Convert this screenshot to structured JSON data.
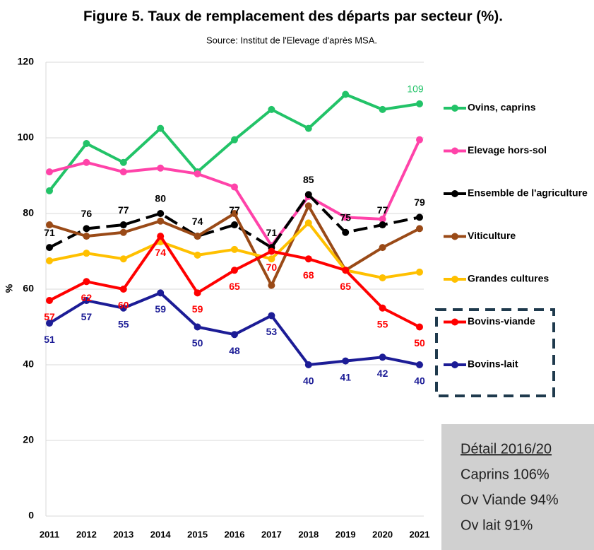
{
  "chart_data": {
    "type": "line",
    "title": "Figure 5. Taux de remplacement des départs par secteur (%).",
    "subtitle": "Source: Institut de l'Elevage d'après MSA.",
    "y_label": "%",
    "x": [
      2011,
      2012,
      2013,
      2014,
      2015,
      2016,
      2017,
      2018,
      2019,
      2020,
      2021
    ],
    "xticks": [
      2011,
      2012,
      2013,
      2014,
      2015,
      2016,
      2017,
      2018,
      2019,
      2020,
      2021
    ],
    "xlim": [
      2011,
      2021
    ],
    "ylim": [
      0,
      120
    ],
    "yticks": [
      0,
      20,
      40,
      60,
      80,
      100,
      120
    ],
    "grid": true,
    "legend": "right",
    "series": [
      {
        "name": "Ovins, caprins",
        "color": "#22c368",
        "data_labels": "last",
        "values": [
          86,
          98.5,
          93.5,
          102.5,
          91,
          99.5,
          107.5,
          102.5,
          111.5,
          107.5,
          109
        ]
      },
      {
        "name": "Elevage hors-sol",
        "color": "#ff43a9",
        "values": [
          91,
          93.5,
          91,
          92,
          90.5,
          87,
          71.5,
          84.5,
          79,
          78.5,
          99.5
        ]
      },
      {
        "name": "Ensemble de l'agriculture",
        "color": "#000000",
        "dashed": true,
        "data_labels": "all",
        "values": [
          71,
          76,
          77,
          80,
          74,
          77,
          71,
          85,
          75,
          77,
          79
        ]
      },
      {
        "name": "Viticulture",
        "color": "#9a4a17",
        "values": [
          77,
          74,
          75,
          78,
          74,
          80,
          61,
          82,
          65,
          71,
          76
        ]
      },
      {
        "name": "Grandes cultures",
        "color": "#ffc000",
        "values": [
          67.5,
          69.5,
          68,
          72.5,
          69,
          70.5,
          68,
          77.5,
          65,
          63,
          64.5
        ]
      },
      {
        "name": "Bovins-viande",
        "color": "#ff0000",
        "data_labels": "all",
        "values": [
          57,
          62,
          60,
          74,
          59,
          65,
          70,
          68,
          65,
          55,
          50
        ]
      },
      {
        "name": "Bovins-lait",
        "color": "#1c1c96",
        "data_labels": "all",
        "values": [
          51,
          57,
          55,
          59,
          50,
          48,
          53,
          40,
          41,
          42,
          40
        ]
      }
    ],
    "note": [
      "Détail 2016/20",
      "Caprins 106%",
      "Ov Viande 94%",
      "Ov lait  91%"
    ]
  }
}
